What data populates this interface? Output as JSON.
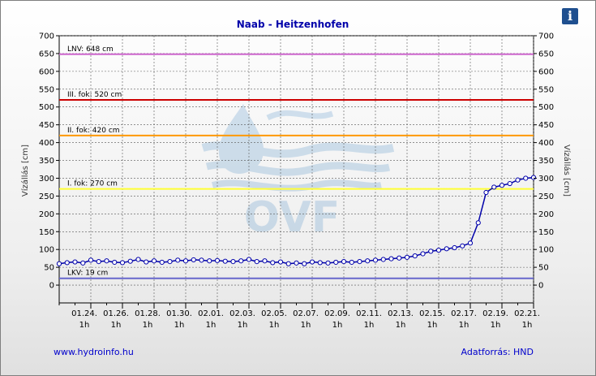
{
  "chart_data": {
    "type": "line",
    "title": "Naab - Heitzenhofen",
    "ylabel_left": "Vízállás [cm]",
    "ylabel_right": "Vízállás [cm]",
    "ylim": [
      -50,
      700
    ],
    "yticks_left": [
      0,
      50,
      100,
      150,
      200,
      250,
      300,
      350,
      400,
      450,
      500,
      550,
      600,
      650,
      700
    ],
    "yticks_right": [
      0,
      50,
      100,
      150,
      200,
      250,
      300,
      350,
      400,
      450,
      500,
      550,
      600,
      650,
      700
    ],
    "x_tick_labels": [
      {
        "date": "01.24.",
        "hour": "1h"
      },
      {
        "date": "01.26.",
        "hour": "1h"
      },
      {
        "date": "01.28.",
        "hour": "1h"
      },
      {
        "date": "01.30.",
        "hour": "1h"
      },
      {
        "date": "02.01.",
        "hour": "1h"
      },
      {
        "date": "02.03.",
        "hour": "1h"
      },
      {
        "date": "02.05.",
        "hour": "1h"
      },
      {
        "date": "02.07.",
        "hour": "1h"
      },
      {
        "date": "02.09.",
        "hour": "1h"
      },
      {
        "date": "02.11.",
        "hour": "1h"
      },
      {
        "date": "02.13.",
        "hour": "1h"
      },
      {
        "date": "02.15.",
        "hour": "1h"
      },
      {
        "date": "02.17.",
        "hour": "1h"
      },
      {
        "date": "02.19.",
        "hour": "1h"
      },
      {
        "date": "02.21.",
        "hour": "1h"
      }
    ],
    "xlim": [
      "01.22.",
      "02.21."
    ],
    "levels": [
      {
        "label": "LNV: 648 cm",
        "value": 648,
        "color": "#cc66cc"
      },
      {
        "label": "III. fok: 520 cm",
        "value": 520,
        "color": "#cc0000"
      },
      {
        "label": "II. fok: 420 cm",
        "value": 420,
        "color": "#ff9900"
      },
      {
        "label": "I. fok: 270 cm",
        "value": 270,
        "color": "#ffff33"
      },
      {
        "label": "LKV: 19 cm",
        "value": 19,
        "color": "#6666cc"
      }
    ],
    "series": [
      {
        "color": "#0000aa",
        "x_days": [
          0,
          0.5,
          1,
          1.5,
          2,
          2.5,
          3,
          3.5,
          4,
          4.5,
          5,
          5.5,
          6,
          6.5,
          7,
          7.5,
          8,
          8.5,
          9,
          9.5,
          10,
          10.5,
          11,
          11.5,
          12,
          12.5,
          13,
          13.5,
          14,
          14.5,
          15,
          15.5,
          16,
          16.5,
          17,
          17.5,
          18,
          18.5,
          19,
          19.5,
          20,
          20.5,
          21,
          21.5,
          22,
          22.5,
          23,
          23.5,
          24,
          24.5,
          25,
          25.5,
          26,
          26.5,
          27,
          27.5,
          28,
          28.5,
          29,
          29.5,
          30
        ],
        "values": [
          60,
          63,
          65,
          62,
          70,
          66,
          68,
          64,
          63,
          67,
          72,
          65,
          68,
          64,
          66,
          70,
          68,
          71,
          70,
          68,
          69,
          67,
          66,
          68,
          72,
          66,
          68,
          63,
          65,
          60,
          62,
          60,
          65,
          63,
          62,
          64,
          66,
          64,
          66,
          68,
          70,
          72,
          74,
          76,
          78,
          82,
          88,
          95,
          98,
          102,
          105,
          110,
          118,
          175,
          260,
          275,
          280,
          285,
          295,
          300,
          302
        ]
      }
    ],
    "grid": true,
    "watermark": "OVF",
    "footer_left": "www.hydroinfo.hu",
    "footer_right": "Adatforrás: HND"
  },
  "info_button": "i"
}
